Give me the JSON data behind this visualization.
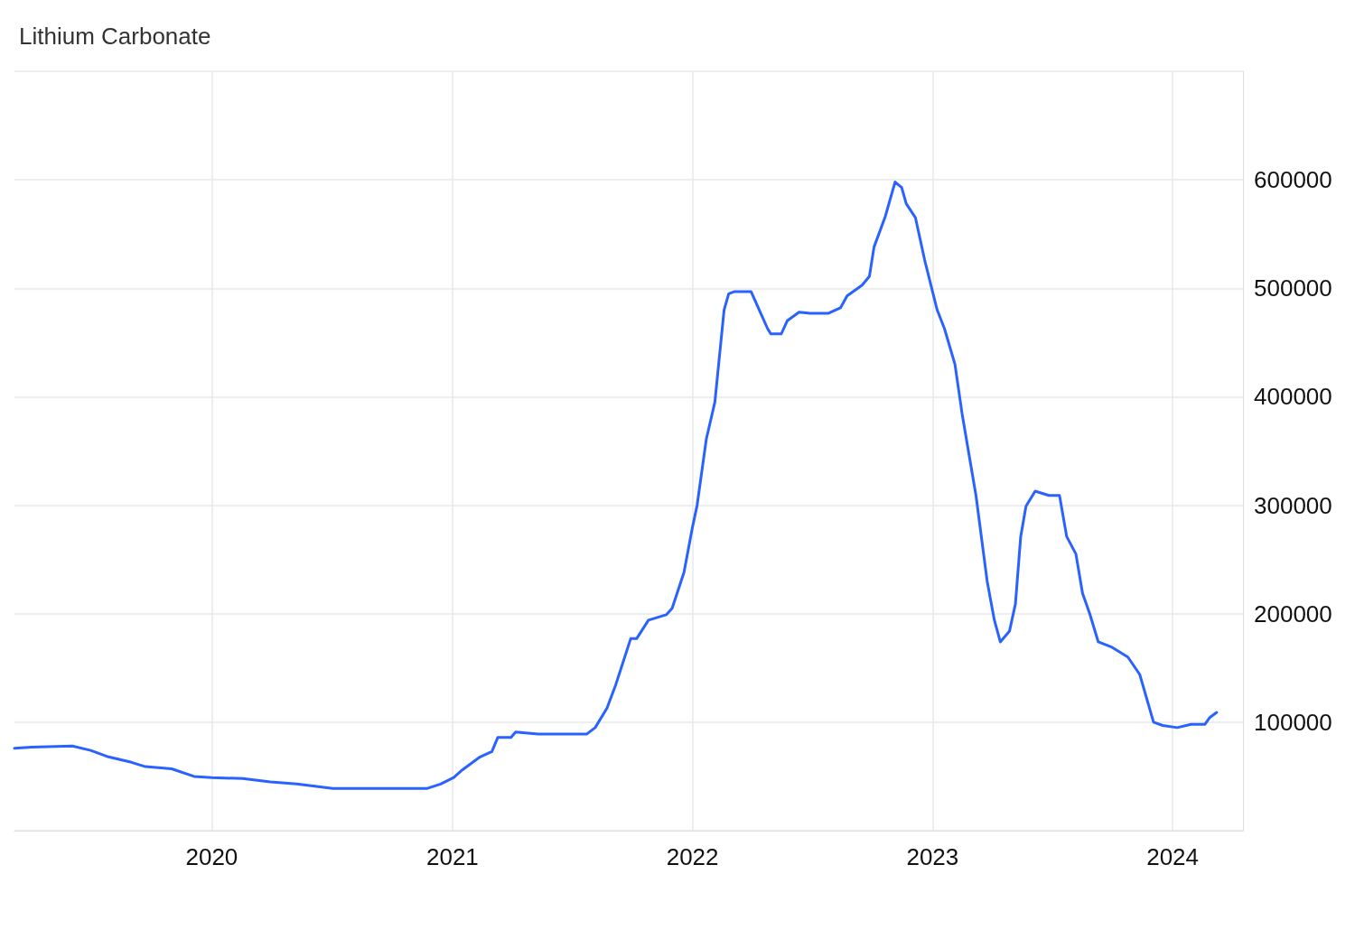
{
  "chart_data": {
    "type": "line",
    "title": "Lithium Carbonate",
    "series": [
      {
        "color": "#2962ff",
        "x": [
          "2019-03-07",
          "2019-04-02",
          "2019-06-03",
          "2019-07-01",
          "2019-07-28",
          "2019-09-01",
          "2019-09-22",
          "2019-11-01",
          "2019-12-05",
          "2020-01-01",
          "2020-02-17",
          "2020-03-30",
          "2020-05-09",
          "2020-07-03",
          "2020-11-24",
          "2020-12-14",
          "2021-01-03",
          "2021-01-16",
          "2021-02-12",
          "2021-03-02",
          "2021-03-11",
          "2021-03-31",
          "2021-04-07",
          "2021-05-11",
          "2021-07-24",
          "2021-08-06",
          "2021-08-24",
          "2021-09-06",
          "2021-09-29",
          "2021-10-08",
          "2021-10-26",
          "2021-11-22",
          "2021-12-01",
          "2021-12-19",
          "2022-01-01",
          "2022-01-08",
          "2022-01-22",
          "2022-02-04",
          "2022-02-18",
          "2022-02-25",
          "2022-03-06",
          "2022-03-31",
          "2022-04-11",
          "2022-04-25",
          "2022-04-30",
          "2022-05-16",
          "2022-05-25",
          "2022-06-12",
          "2022-06-29",
          "2022-07-27",
          "2022-08-14",
          "2022-08-24",
          "2022-09-16",
          "2022-09-27",
          "2022-10-04",
          "2022-10-21",
          "2022-11-05",
          "2022-11-15",
          "2022-11-22",
          "2022-12-06",
          "2022-12-20",
          "2023-01-08",
          "2023-01-19",
          "2023-02-04",
          "2023-02-15",
          "2023-03-08",
          "2023-03-25",
          "2023-04-05",
          "2023-04-14",
          "2023-04-28",
          "2023-05-07",
          "2023-05-15",
          "2023-05-23",
          "2023-06-06",
          "2023-06-27",
          "2023-07-13",
          "2023-07-24",
          "2023-08-07",
          "2023-08-17",
          "2023-08-28",
          "2023-09-10",
          "2023-10-01",
          "2023-10-25",
          "2023-11-12",
          "2023-12-03",
          "2023-12-17",
          "2024-01-08",
          "2024-01-29",
          "2024-02-19",
          "2024-02-26",
          "2024-03-08"
        ],
        "values": [
          76000,
          77000,
          78000,
          74000,
          68000,
          63000,
          59000,
          57000,
          50000,
          49000,
          48000,
          45000,
          43000,
          39000,
          39000,
          43000,
          49000,
          56000,
          68000,
          73000,
          86000,
          86000,
          91000,
          89000,
          89000,
          95000,
          113000,
          134000,
          177000,
          177000,
          194000,
          199000,
          205000,
          238000,
          280000,
          300000,
          361000,
          395000,
          480000,
          495000,
          497000,
          497000,
          482000,
          463000,
          458000,
          458000,
          470000,
          478000,
          477000,
          477000,
          482000,
          493000,
          503000,
          511000,
          538000,
          566000,
          598000,
          593000,
          578000,
          565000,
          526000,
          480000,
          463000,
          430000,
          384000,
          309000,
          230000,
          194000,
          174000,
          184000,
          209000,
          271000,
          299000,
          313000,
          309000,
          309000,
          271000,
          255000,
          219000,
          200000,
          174000,
          169000,
          160000,
          144000,
          100000,
          97000,
          95000,
          98000,
          98000,
          104000,
          109000
        ]
      }
    ],
    "xlim": [
      "2019-03-07",
      "2024-04-17"
    ],
    "xticks": [
      "2020",
      "2021",
      "2022",
      "2023",
      "2024"
    ],
    "ylim": [
      0,
      700000
    ],
    "yticks": [
      {
        "value": 0,
        "label": null
      },
      100000,
      200000,
      300000,
      400000,
      500000,
      600000,
      {
        "value": 700000,
        "label": null
      }
    ],
    "grid": true,
    "marker": "none",
    "line_style": "solid"
  }
}
